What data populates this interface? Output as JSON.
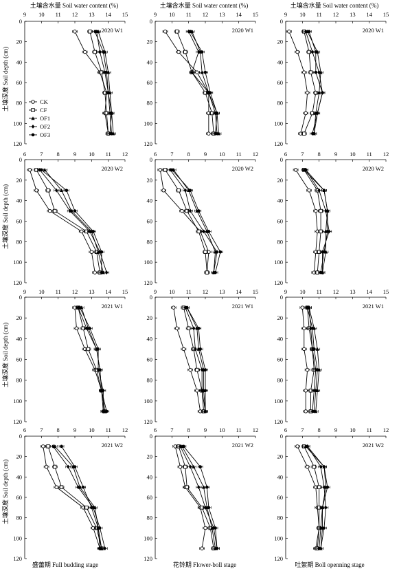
{
  "figure": {
    "top_axis_title": "土壤含水量 Soil water content (%)",
    "ylabel": "土壤深度 Soil depth (cm)",
    "stages": [
      "盛蕾期 Full budding stage",
      "花铃期 Flower-boll stage",
      "吐絮期 Boll openning stage"
    ]
  },
  "chart_data": [
    {
      "type": "line",
      "panel_label": "2020 W1",
      "xlim": [
        9,
        15
      ],
      "ylim": [
        0,
        120
      ],
      "y_reversed": true,
      "depths": [
        10,
        30,
        50,
        70,
        90,
        110
      ],
      "series": [
        {
          "name": "CK",
          "marker": "circle-open",
          "values": [
            12.0,
            12.6,
            13.5,
            13.9,
            13.8,
            14.0
          ]
        },
        {
          "name": "CF",
          "marker": "square-open",
          "values": [
            12.9,
            13.2,
            13.6,
            13.8,
            13.9,
            14.0
          ]
        },
        {
          "name": "OF1",
          "marker": "triangle-filled",
          "values": [
            13.4,
            13.8,
            14.0,
            14.1,
            14.2,
            14.3
          ]
        },
        {
          "name": "OF2",
          "marker": "diamond-filled",
          "values": [
            13.2,
            13.7,
            13.9,
            14.0,
            14.1,
            14.2
          ]
        },
        {
          "name": "OF3",
          "marker": "circle-filled",
          "values": [
            13.3,
            13.5,
            13.8,
            14.0,
            14.2,
            14.1
          ]
        }
      ]
    },
    {
      "type": "line",
      "panel_label": "2020 W1",
      "xlim": [
        9,
        15
      ],
      "ylim": [
        0,
        120
      ],
      "y_reversed": true,
      "depths": [
        10,
        30,
        50,
        70,
        90,
        110
      ],
      "series": [
        {
          "name": "CK",
          "marker": "circle-open",
          "values": [
            9.6,
            10.4,
            11.5,
            12.2,
            12.2,
            12.2
          ]
        },
        {
          "name": "CF",
          "marker": "square-open",
          "values": [
            10.3,
            10.8,
            11.2,
            12.0,
            12.4,
            12.5
          ]
        },
        {
          "name": "OF1",
          "marker": "triangle-filled",
          "values": [
            11.2,
            11.7,
            11.8,
            12.2,
            12.7,
            12.8
          ]
        },
        {
          "name": "OF2",
          "marker": "diamond-filled",
          "values": [
            11.0,
            11.6,
            11.2,
            12.2,
            12.6,
            12.7
          ]
        },
        {
          "name": "OF3",
          "marker": "circle-filled",
          "values": [
            11.1,
            11.8,
            12.0,
            12.3,
            12.7,
            12.6
          ]
        }
      ]
    },
    {
      "type": "line",
      "panel_label": "2020 W1",
      "xlim": [
        9,
        15
      ],
      "ylim": [
        0,
        120
      ],
      "y_reversed": true,
      "depths": [
        10,
        30,
        50,
        70,
        90,
        110
      ],
      "series": [
        {
          "name": "CK",
          "marker": "circle-open",
          "values": [
            9.2,
            9.7,
            10.1,
            10.3,
            10.2,
            9.9
          ]
        },
        {
          "name": "CF",
          "marker": "square-open",
          "values": [
            10.1,
            10.4,
            10.5,
            10.8,
            10.6,
            10.1
          ]
        },
        {
          "name": "OF1",
          "marker": "triangle-filled",
          "values": [
            10.3,
            10.9,
            11.1,
            11.0,
            10.8,
            10.7
          ]
        },
        {
          "name": "OF2",
          "marker": "diamond-filled",
          "values": [
            10.2,
            10.6,
            11.0,
            11.2,
            10.9,
            10.6
          ]
        },
        {
          "name": "OF3",
          "marker": "circle-filled",
          "values": [
            10.4,
            10.8,
            10.8,
            11.2,
            10.9,
            10.7
          ]
        }
      ]
    },
    {
      "type": "line",
      "panel_label": "2020 W2",
      "xlim": [
        6,
        12
      ],
      "ylim": [
        0,
        120
      ],
      "y_reversed": true,
      "depths": [
        10,
        30,
        50,
        70,
        90,
        110
      ],
      "series": [
        {
          "name": "CK",
          "marker": "circle-open",
          "values": [
            6.3,
            6.7,
            7.5,
            9.4,
            10.0,
            10.2
          ]
        },
        {
          "name": "CF",
          "marker": "square-open",
          "values": [
            6.7,
            7.4,
            7.8,
            9.7,
            10.3,
            10.5
          ]
        },
        {
          "name": "OF1",
          "marker": "triangle-filled",
          "values": [
            7.2,
            8.2,
            8.8,
            10.0,
            10.4,
            10.7
          ]
        },
        {
          "name": "OF2",
          "marker": "diamond-filled",
          "values": [
            6.9,
            7.9,
            8.7,
            9.9,
            10.5,
            10.9
          ]
        },
        {
          "name": "OF3",
          "marker": "circle-filled",
          "values": [
            7.0,
            8.5,
            9.0,
            10.1,
            10.6,
            10.6
          ]
        }
      ]
    },
    {
      "type": "line",
      "panel_label": "2020 W2",
      "xlim": [
        6,
        12
      ],
      "ylim": [
        0,
        120
      ],
      "y_reversed": true,
      "depths": [
        10,
        30,
        50,
        70,
        90,
        110
      ],
      "series": [
        {
          "name": "CK",
          "marker": "circle-open",
          "values": [
            6.3,
            6.5,
            7.6,
            8.7,
            9.2,
            9.1
          ]
        },
        {
          "name": "CF",
          "marker": "square-open",
          "values": [
            6.6,
            7.4,
            7.9,
            8.6,
            9.0,
            9.1
          ]
        },
        {
          "name": "OF1",
          "marker": "triangle-filled",
          "values": [
            7.1,
            8.0,
            8.5,
            9.1,
            9.6,
            9.5
          ]
        },
        {
          "name": "OF2",
          "marker": "diamond-filled",
          "values": [
            6.9,
            7.8,
            8.1,
            8.9,
            9.7,
            9.5
          ]
        },
        {
          "name": "OF3",
          "marker": "circle-filled",
          "values": [
            7.0,
            8.1,
            8.6,
            9.2,
            9.9,
            9.6
          ]
        }
      ]
    },
    {
      "type": "line",
      "panel_label": "2020 W2",
      "xlim": [
        6,
        12
      ],
      "ylim": [
        0,
        120
      ],
      "y_reversed": true,
      "depths": [
        10,
        30,
        50,
        70,
        90,
        110
      ],
      "series": [
        {
          "name": "CK",
          "marker": "circle-open",
          "values": [
            6.6,
            7.4,
            7.8,
            7.9,
            7.8,
            7.7
          ]
        },
        {
          "name": "CF",
          "marker": "square-open",
          "values": [
            7.1,
            7.9,
            8.1,
            8.1,
            8.0,
            7.9
          ]
        },
        {
          "name": "OF1",
          "marker": "triangle-filled",
          "values": [
            7.1,
            8.3,
            8.5,
            8.4,
            8.4,
            8.2
          ]
        },
        {
          "name": "OF2",
          "marker": "diamond-filled",
          "values": [
            7.2,
            8.0,
            8.4,
            8.6,
            8.2,
            8.2
          ]
        },
        {
          "name": "OF3",
          "marker": "circle-filled",
          "values": [
            7.2,
            8.3,
            8.5,
            8.5,
            8.3,
            8.1
          ]
        }
      ]
    },
    {
      "type": "line",
      "panel_label": "2021 W1",
      "xlim": [
        9,
        15
      ],
      "ylim": [
        0,
        120
      ],
      "y_reversed": true,
      "depths": [
        10,
        30,
        50,
        70,
        90,
        110
      ],
      "series": [
        {
          "name": "CK",
          "marker": "circle-open",
          "values": [
            12.0,
            12.1,
            12.6,
            13.2,
            13.6,
            13.7
          ]
        },
        {
          "name": "CF",
          "marker": "square-open",
          "values": [
            12.2,
            12.5,
            12.8,
            13.3,
            13.6,
            13.8
          ]
        },
        {
          "name": "OF1",
          "marker": "triangle-filled",
          "values": [
            12.4,
            12.8,
            13.3,
            13.5,
            13.6,
            13.8
          ]
        },
        {
          "name": "OF2",
          "marker": "diamond-filled",
          "values": [
            12.3,
            12.9,
            13.4,
            13.4,
            13.7,
            13.7
          ]
        },
        {
          "name": "OF3",
          "marker": "circle-filled",
          "values": [
            12.2,
            12.7,
            13.3,
            13.5,
            13.6,
            13.9
          ]
        }
      ]
    },
    {
      "type": "line",
      "panel_label": "2021 W1",
      "xlim": [
        9,
        15
      ],
      "ylim": [
        0,
        120
      ],
      "y_reversed": true,
      "depths": [
        10,
        30,
        50,
        70,
        90,
        110
      ],
      "series": [
        {
          "name": "CK",
          "marker": "circle-open",
          "values": [
            10.1,
            10.3,
            10.7,
            11.1,
            11.5,
            11.7
          ]
        },
        {
          "name": "CF",
          "marker": "square-open",
          "values": [
            10.7,
            11.0,
            11.3,
            11.5,
            11.8,
            11.9
          ]
        },
        {
          "name": "OF1",
          "marker": "triangle-filled",
          "values": [
            10.9,
            11.5,
            11.6,
            11.9,
            11.9,
            12.0
          ]
        },
        {
          "name": "OF2",
          "marker": "diamond-filled",
          "values": [
            10.8,
            11.3,
            11.4,
            11.8,
            11.8,
            12.0
          ]
        },
        {
          "name": "OF3",
          "marker": "circle-filled",
          "values": [
            10.9,
            11.6,
            11.7,
            12.0,
            12.0,
            12.0
          ]
        }
      ]
    },
    {
      "type": "line",
      "panel_label": "2021 W1",
      "xlim": [
        9,
        15
      ],
      "ylim": [
        0,
        120
      ],
      "y_reversed": true,
      "depths": [
        10,
        30,
        50,
        70,
        90,
        110
      ],
      "series": [
        {
          "name": "CK",
          "marker": "circle-open",
          "values": [
            10.0,
            10.1,
            10.1,
            10.3,
            10.2,
            10.2
          ]
        },
        {
          "name": "CF",
          "marker": "square-open",
          "values": [
            10.3,
            10.4,
            10.6,
            10.7,
            10.5,
            10.5
          ]
        },
        {
          "name": "OF1",
          "marker": "triangle-filled",
          "values": [
            10.4,
            10.7,
            10.9,
            11.0,
            10.9,
            10.8
          ]
        },
        {
          "name": "OF2",
          "marker": "diamond-filled",
          "values": [
            10.4,
            10.5,
            10.6,
            10.8,
            10.7,
            10.6
          ]
        },
        {
          "name": "OF3",
          "marker": "circle-filled",
          "values": [
            10.3,
            10.6,
            10.7,
            10.9,
            10.8,
            10.7
          ]
        }
      ]
    },
    {
      "type": "line",
      "panel_label": "2021 W2",
      "xlim": [
        6,
        12
      ],
      "ylim": [
        0,
        120
      ],
      "y_reversed": true,
      "depths": [
        10,
        30,
        50,
        70,
        90,
        110
      ],
      "series": [
        {
          "name": "CK",
          "marker": "circle-open",
          "values": [
            7.1,
            7.3,
            7.9,
            9.5,
            10.1,
            10.5
          ]
        },
        {
          "name": "CF",
          "marker": "square-open",
          "values": [
            7.4,
            7.8,
            8.2,
            9.7,
            10.3,
            10.6
          ]
        },
        {
          "name": "OF1",
          "marker": "triangle-filled",
          "values": [
            7.8,
            8.9,
            9.3,
            10.2,
            10.4,
            10.6
          ]
        },
        {
          "name": "OF2",
          "marker": "diamond-filled",
          "values": [
            7.7,
            8.6,
            9.2,
            10.1,
            10.5,
            10.8
          ]
        },
        {
          "name": "OF3",
          "marker": "circle-filled",
          "values": [
            8.2,
            9.0,
            9.5,
            10.0,
            10.4,
            10.5
          ]
        }
      ]
    },
    {
      "type": "line",
      "panel_label": "2021 W2",
      "xlim": [
        6,
        12
      ],
      "ylim": [
        0,
        120
      ],
      "y_reversed": true,
      "depths": [
        10,
        30,
        50,
        70,
        90,
        110
      ],
      "series": [
        {
          "name": "CK",
          "marker": "circle-open",
          "values": [
            7.2,
            7.5,
            7.8,
            8.7,
            9.0,
            8.8
          ]
        },
        {
          "name": "CF",
          "marker": "square-open",
          "values": [
            7.4,
            7.8,
            7.9,
            8.8,
            9.3,
            9.5
          ]
        },
        {
          "name": "OF1",
          "marker": "triangle-filled",
          "values": [
            7.6,
            8.3,
            8.9,
            9.1,
            9.4,
            9.6
          ]
        },
        {
          "name": "OF2",
          "marker": "diamond-filled",
          "values": [
            7.5,
            8.1,
            8.6,
            9.0,
            9.5,
            9.7
          ]
        },
        {
          "name": "OF3",
          "marker": "circle-filled",
          "values": [
            7.7,
            8.7,
            9.1,
            9.2,
            9.6,
            9.7
          ]
        }
      ]
    },
    {
      "type": "line",
      "panel_label": "2021 W2",
      "xlim": [
        6,
        12
      ],
      "ylim": [
        0,
        120
      ],
      "y_reversed": true,
      "depths": [
        10,
        30,
        50,
        70,
        90,
        110
      ],
      "series": [
        {
          "name": "CK",
          "marker": "circle-open",
          "values": [
            6.7,
            7.3,
            7.8,
            7.9,
            8.0,
            7.8
          ]
        },
        {
          "name": "CF",
          "marker": "square-open",
          "values": [
            7.1,
            7.7,
            8.0,
            8.0,
            8.0,
            7.9
          ]
        },
        {
          "name": "OF1",
          "marker": "triangle-filled",
          "values": [
            7.2,
            8.3,
            8.4,
            8.2,
            8.2,
            8.1
          ]
        },
        {
          "name": "OF2",
          "marker": "diamond-filled",
          "values": [
            7.3,
            8.1,
            8.3,
            8.4,
            8.3,
            8.1
          ]
        },
        {
          "name": "OF3",
          "marker": "circle-filled",
          "values": [
            7.3,
            8.3,
            8.5,
            8.2,
            8.1,
            8.0
          ]
        }
      ]
    }
  ],
  "legend": {
    "entries": [
      {
        "name": "CK",
        "marker": "circle-open"
      },
      {
        "name": "CF",
        "marker": "square-open"
      },
      {
        "name": "OF1",
        "marker": "triangle-filled"
      },
      {
        "name": "OF2",
        "marker": "diamond-filled"
      },
      {
        "name": "OF3",
        "marker": "circle-filled"
      }
    ],
    "placement": "inside first panel, center-left"
  }
}
